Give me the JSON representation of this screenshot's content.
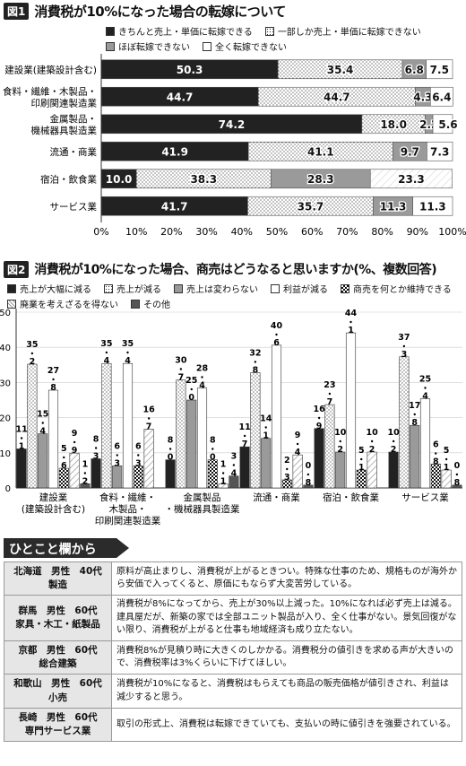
{
  "figure1": {
    "badge": "図1",
    "title": "消費税が10%になった場合の転嫁について",
    "legend": [
      {
        "label": "きちんと売上・単価に転嫁できる",
        "pattern": "black"
      },
      {
        "label": "一部しか売上・単価に転嫁できない",
        "pattern": "dots"
      },
      {
        "label": "ほぼ転嫁できない",
        "pattern": "gray"
      },
      {
        "label": "全く転嫁できない",
        "pattern": "white"
      }
    ],
    "chart_data": {
      "type": "bar",
      "orientation": "horizontal-stacked",
      "categories": [
        "建設業(建築設計含む)",
        "食料・繊維・木製品・印刷関連製造業",
        "金属製品・機械器具製造業",
        "流通・商業",
        "宿泊・飲食業",
        "サービス業"
      ],
      "series": [
        {
          "name": "きちんと売上・単価に転嫁できる",
          "values": [
            50.3,
            44.7,
            74.2,
            41.9,
            10.0,
            41.7
          ]
        },
        {
          "name": "一部しか売上・単価に転嫁できない",
          "values": [
            35.4,
            44.7,
            18.0,
            41.1,
            38.3,
            35.7
          ]
        },
        {
          "name": "ほぼ転嫁できない",
          "values": [
            6.8,
            4.3,
            2.2,
            9.7,
            28.3,
            11.3
          ]
        },
        {
          "name": "全く転嫁できない",
          "values": [
            7.5,
            6.4,
            5.6,
            7.3,
            23.3,
            11.3
          ]
        }
      ],
      "xlim": [
        0,
        100
      ],
      "xticks": [
        "0%",
        "10%",
        "20%",
        "30%",
        "40%",
        "50%",
        "60%",
        "70%",
        "80%",
        "90%",
        "100%"
      ]
    }
  },
  "figure2": {
    "badge": "図2",
    "title": "消費税が10%になった場合、商売はどうなると思いますか(%、複数回答)",
    "legend": [
      {
        "label": "売上が大幅に減る",
        "pattern": "black"
      },
      {
        "label": "売上が減る",
        "pattern": "dots"
      },
      {
        "label": "売上は変わらない",
        "pattern": "gray"
      },
      {
        "label": "利益が減る",
        "pattern": "white"
      },
      {
        "label": "商売を何とか維持できる",
        "pattern": "checker"
      },
      {
        "label": "廃業を考えざるを得ない",
        "pattern": "hatch"
      },
      {
        "label": "その他",
        "pattern": "darkgray"
      }
    ],
    "chart_data": {
      "type": "bar",
      "orientation": "vertical-grouped",
      "categories": [
        [
          "建設業",
          "(建築設計含む)"
        ],
        [
          "食料・繊維・",
          "木製品・",
          "印刷関連製造業"
        ],
        [
          "金属製品",
          "・機械器具製造業"
        ],
        [
          "流通・商業"
        ],
        [
          "宿泊・飲食業"
        ],
        [
          "サービス業"
        ]
      ],
      "series": [
        {
          "name": "売上が大幅に減る",
          "values": [
            11.1,
            8.3,
            8.0,
            11.7,
            16.9,
            10.2
          ]
        },
        {
          "name": "売上が減る",
          "values": [
            35.2,
            35.4,
            30.7,
            32.8,
            23.7,
            37.3
          ]
        },
        {
          "name": "売上は変わらない",
          "values": [
            15.4,
            6.3,
            25.0,
            14.1,
            10.2,
            17.8
          ]
        },
        {
          "name": "利益が減る",
          "values": [
            27.8,
            35.4,
            28.4,
            40.6,
            44.1,
            25.4
          ]
        },
        {
          "name": "商売を何とか維持できる",
          "values": [
            5.6,
            6.3,
            8.0,
            2.3,
            5.1,
            6.8
          ]
        },
        {
          "name": "廃業を考えざるを得ない",
          "values": [
            9.9,
            16.7,
            1.1,
            9.4,
            10.2,
            5.1
          ]
        },
        {
          "name": "その他",
          "values": [
            1.2,
            0,
            3.4,
            0.8,
            0,
            0.8
          ]
        }
      ],
      "labels": [
        [
          "11.1",
          "35.2",
          "15.4",
          "27.8",
          "5.6",
          "9.9",
          "1.2"
        ],
        [
          "8.3",
          "35.4",
          "6.3",
          "35.4",
          "6.3",
          "16.7",
          ""
        ],
        [
          "8.0",
          "30.7",
          "25.0",
          "28.4",
          "8.0",
          "1.1",
          "3.4"
        ],
        [
          "11.7",
          "32.8",
          "14.1",
          "40.6",
          "2.3",
          "9.4",
          "0.8"
        ],
        [
          "16.9",
          "23.7",
          "10.2",
          "44.1",
          "5.1",
          "10.2",
          ""
        ],
        [
          "10.2",
          "37.3",
          "17.8",
          "25.4",
          "6.8",
          "5.1",
          "0.8"
        ]
      ],
      "ylim": [
        0,
        50
      ],
      "yticks": [
        "0",
        "10",
        "20",
        "30",
        "40",
        "50"
      ]
    }
  },
  "comments": {
    "title": "ひとこと欄から",
    "rows": [
      {
        "who": [
          "北海道　男性　40代",
          "製造"
        ],
        "text": "原料が高止まりし、消費税が上がるときつい。特殊な仕事のため、規格ものが海外から安価で入ってくると、原価にもならず大変苦労している。"
      },
      {
        "who": [
          "群馬　男性　60代",
          "家具・木工・紙製品"
        ],
        "text": "消費税が8%になってから、売上が30%以上減った。10%になれば必ず売上は減る。建具屋だが、新築の家では全部ユニット製品が入り、全く仕事がない。景気回復がない限り、消費税が上がると仕事も地域経済も成り立たない。"
      },
      {
        "who": [
          "京都　男性　60代",
          "総合建築"
        ],
        "text": "消費税8%が見積り時に大きくのしかかる。消費税分の値引きを求める声が大きいので、消費税率は3%くらいに下げてほしい。"
      },
      {
        "who": [
          "和歌山　男性　60代",
          "小売"
        ],
        "text": "消費税が10%になると、消費税はもらえても商品の販売価格が値引きされ、利益は減少すると思う。"
      },
      {
        "who": [
          "長崎　男性　60代",
          "専門サービス業"
        ],
        "text": "取引の形式上、消費税は転嫁できていても、支払いの時に値引きを強要されている。"
      }
    ]
  }
}
